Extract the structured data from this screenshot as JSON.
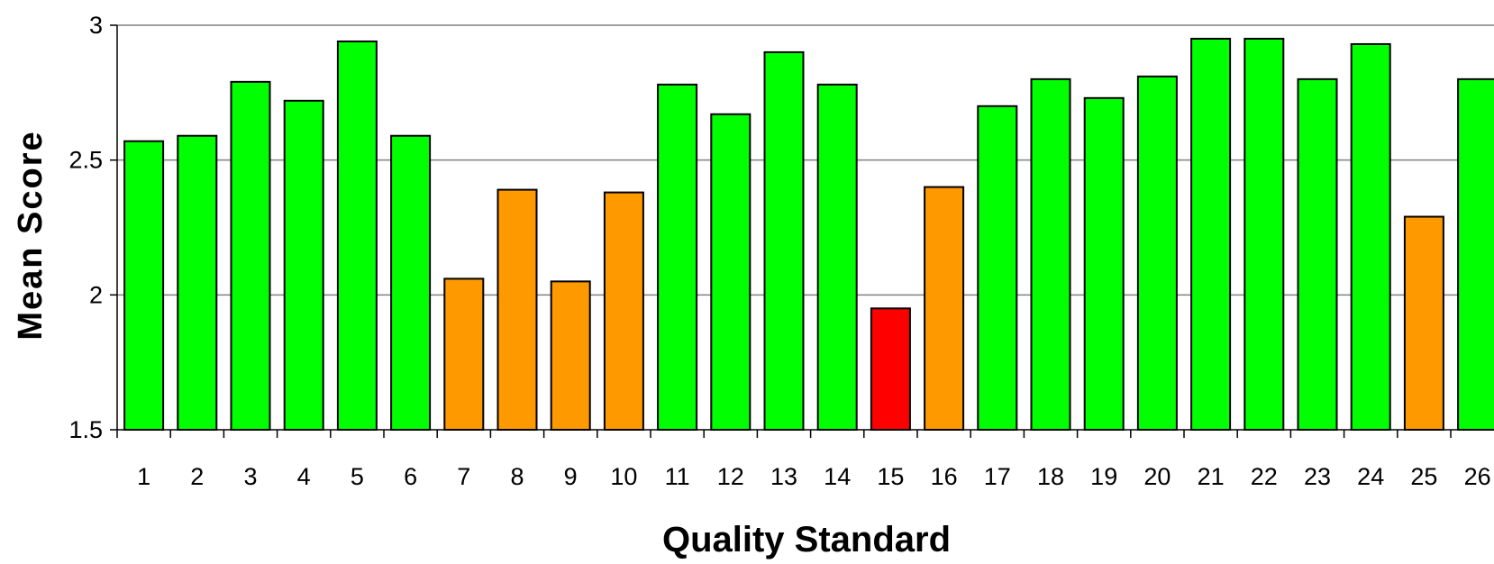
{
  "chart_data": {
    "type": "bar",
    "title": "",
    "xlabel": "Quality Standard",
    "ylabel": "Mean Score",
    "ylim": [
      1.5,
      3
    ],
    "yticks": [
      1.5,
      2,
      2.5,
      3
    ],
    "ytick_labels": [
      "1.5",
      "2",
      "2.5",
      "3"
    ],
    "grid": "horizontal",
    "categories": [
      "1",
      "2",
      "3",
      "4",
      "5",
      "6",
      "7",
      "8",
      "9",
      "10",
      "11",
      "12",
      "13",
      "14",
      "15",
      "16",
      "17",
      "18",
      "19",
      "20",
      "21",
      "22",
      "23",
      "24",
      "25",
      "26"
    ],
    "values": [
      2.57,
      2.59,
      2.79,
      2.72,
      2.94,
      2.59,
      2.06,
      2.39,
      2.05,
      2.38,
      2.78,
      2.67,
      2.9,
      2.78,
      1.95,
      2.4,
      2.7,
      2.8,
      2.73,
      2.81,
      2.95,
      2.95,
      2.8,
      2.93,
      2.29,
      2.8
    ],
    "bar_colors": [
      "#00ff00",
      "#00ff00",
      "#00ff00",
      "#00ff00",
      "#00ff00",
      "#00ff00",
      "#ff9900",
      "#ff9900",
      "#ff9900",
      "#ff9900",
      "#00ff00",
      "#00ff00",
      "#00ff00",
      "#00ff00",
      "#ff0000",
      "#ff9900",
      "#00ff00",
      "#00ff00",
      "#00ff00",
      "#00ff00",
      "#00ff00",
      "#00ff00",
      "#00ff00",
      "#00ff00",
      "#ff9900",
      "#00ff00"
    ],
    "legend": "none"
  }
}
